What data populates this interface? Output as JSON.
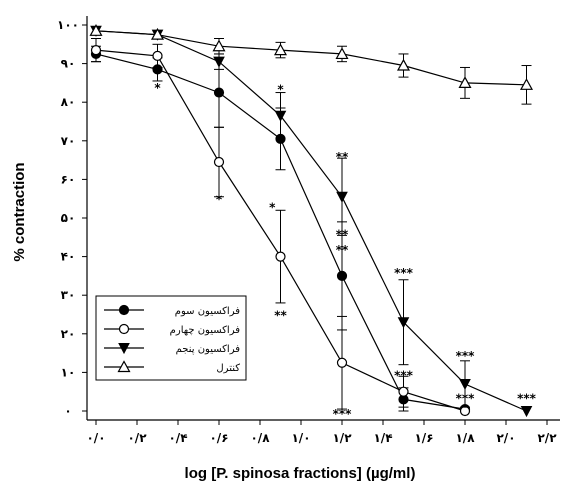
{
  "chart_data": {
    "type": "line",
    "xlabel": "log [P. spinosa fractions] (µg/ml)",
    "ylabel": "% contraction",
    "xlim": [
      0,
      2.2
    ],
    "ylim": [
      0,
      100
    ],
    "x_ticks": [
      0,
      0.2,
      0.4,
      0.6,
      0.8,
      1.0,
      1.2,
      1.4,
      1.6,
      1.8,
      2.0,
      2.2
    ],
    "x_tick_labels": [
      "۰/۰",
      "۰/۲",
      "۰/۴",
      "۰/۶",
      "۰/۸",
      "۱/۰",
      "۱/۲",
      "۱/۴",
      "۱/۶",
      "۱/۸",
      "۲/۰",
      "۲/۲"
    ],
    "y_ticks": [
      0,
      10,
      20,
      30,
      40,
      50,
      60,
      70,
      80,
      90,
      100
    ],
    "y_tick_labels": [
      "۰",
      "۱۰",
      "۲۰",
      "۳۰",
      "۴۰",
      "۵۰",
      "۶۰",
      "۷۰",
      "۸۰",
      "۹۰",
      "۱۰۰"
    ],
    "legend_position": "bottom-left",
    "series": [
      {
        "name": "فراکسیون سوم",
        "marker": "filled-circle",
        "x": [
          0.0,
          0.3,
          0.6,
          0.9,
          1.2,
          1.5,
          1.8
        ],
        "y": [
          92.5,
          88.5,
          82.5,
          70.5,
          35,
          3,
          0.5
        ],
        "err": [
          2,
          3,
          9,
          8,
          14,
          3,
          0
        ]
      },
      {
        "name": "فراکسیون چهارم",
        "marker": "open-circle",
        "x": [
          0.0,
          0.3,
          0.6,
          0.9,
          1.2,
          1.5,
          1.8
        ],
        "y": [
          93.5,
          92,
          64.5,
          40,
          12.5,
          5,
          0
        ],
        "err": [
          3,
          3,
          9,
          12,
          12,
          4,
          0
        ]
      },
      {
        "name": "فراکسیون پنجم",
        "marker": "filled-triangle-down",
        "x": [
          0.0,
          0.3,
          0.6,
          0.9,
          1.2,
          1.5,
          1.8,
          2.1
        ],
        "y": [
          98.5,
          97.5,
          90.5,
          76.5,
          55.5,
          23,
          7,
          0
        ],
        "err": [
          1,
          1,
          2,
          6,
          10,
          11,
          6,
          0
        ]
      },
      {
        "name": "کنترل",
        "marker": "open-triangle-up",
        "x": [
          0.0,
          0.3,
          0.6,
          0.9,
          1.2,
          1.5,
          1.8,
          2.1
        ],
        "y": [
          98.5,
          97.5,
          94.5,
          93.5,
          92.5,
          89.5,
          85,
          84.5
        ],
        "err": [
          1,
          1,
          2,
          2,
          2,
          3,
          4,
          5
        ]
      }
    ],
    "annotations": [
      {
        "text": "*",
        "x": 0.3,
        "y": 84
      },
      {
        "text": "*",
        "x": 0.6,
        "y": 55
      },
      {
        "text": "*",
        "x": 0.9,
        "y": 83.5
      },
      {
        "text": "*",
        "x": 0.86,
        "y": 53
      },
      {
        "text": "**",
        "x": 0.9,
        "y": 25
      },
      {
        "text": "**",
        "x": 1.2,
        "y": 66
      },
      {
        "text": "**",
        "x": 1.2,
        "y": 46
      },
      {
        "text": "**",
        "x": 1.2,
        "y": 42
      },
      {
        "text": "***",
        "x": 1.2,
        "y": -0.5
      },
      {
        "text": "***",
        "x": 1.5,
        "y": 36
      },
      {
        "text": "***",
        "x": 1.5,
        "y": 9.5
      },
      {
        "text": "***",
        "x": 1.8,
        "y": 14.5
      },
      {
        "text": "***",
        "x": 1.8,
        "y": 3.5
      },
      {
        "text": "***",
        "x": 2.1,
        "y": 3.5
      }
    ]
  }
}
